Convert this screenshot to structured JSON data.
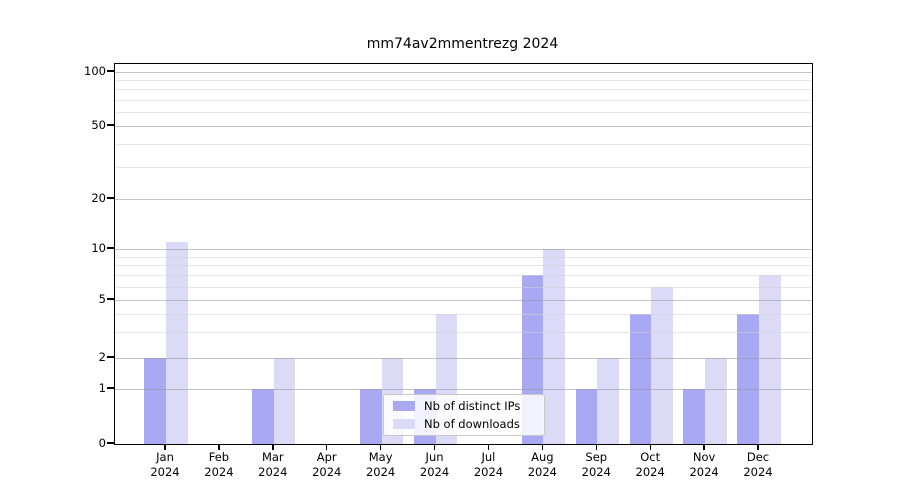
{
  "chart_data": {
    "type": "bar",
    "title": "mm74av2mmentrezg 2024",
    "categories": [
      "Jan 2024",
      "Feb 2024",
      "Mar 2024",
      "Apr 2024",
      "May 2024",
      "Jun 2024",
      "Jul 2024",
      "Aug 2024",
      "Sep 2024",
      "Oct 2024",
      "Nov 2024",
      "Dec 2024"
    ],
    "month_labels": [
      "Jan",
      "Feb",
      "Mar",
      "Apr",
      "May",
      "Jun",
      "Jul",
      "Aug",
      "Sep",
      "Oct",
      "Nov",
      "Dec"
    ],
    "year_label": "2024",
    "series": [
      {
        "name": "Nb of distinct IPs",
        "color": "#a9a9f3",
        "values": [
          2,
          0,
          1,
          0,
          1,
          1,
          0,
          7,
          1,
          4,
          1,
          4
        ]
      },
      {
        "name": "Nb of downloads",
        "color": "#dbdbf8",
        "values": [
          11,
          0,
          2,
          0,
          2,
          4,
          0,
          10,
          2,
          6,
          2,
          7
        ]
      }
    ],
    "xlabel": "",
    "ylabel": "",
    "yscale": "symlog",
    "ylim": [
      0,
      100
    ],
    "y_major_ticks": [
      0,
      1,
      2,
      5,
      10,
      20,
      50,
      100
    ],
    "y_minor_ticks": [
      3,
      4,
      6,
      7,
      8,
      9,
      30,
      40,
      60,
      70,
      80,
      90
    ],
    "grid": true,
    "legend_position": "lower center"
  },
  "colors": {
    "background": "#ffffff",
    "spine": "#000000",
    "major_grid": "#c9c9c9",
    "minor_grid": "#e9e9e9",
    "text": "#000000"
  }
}
